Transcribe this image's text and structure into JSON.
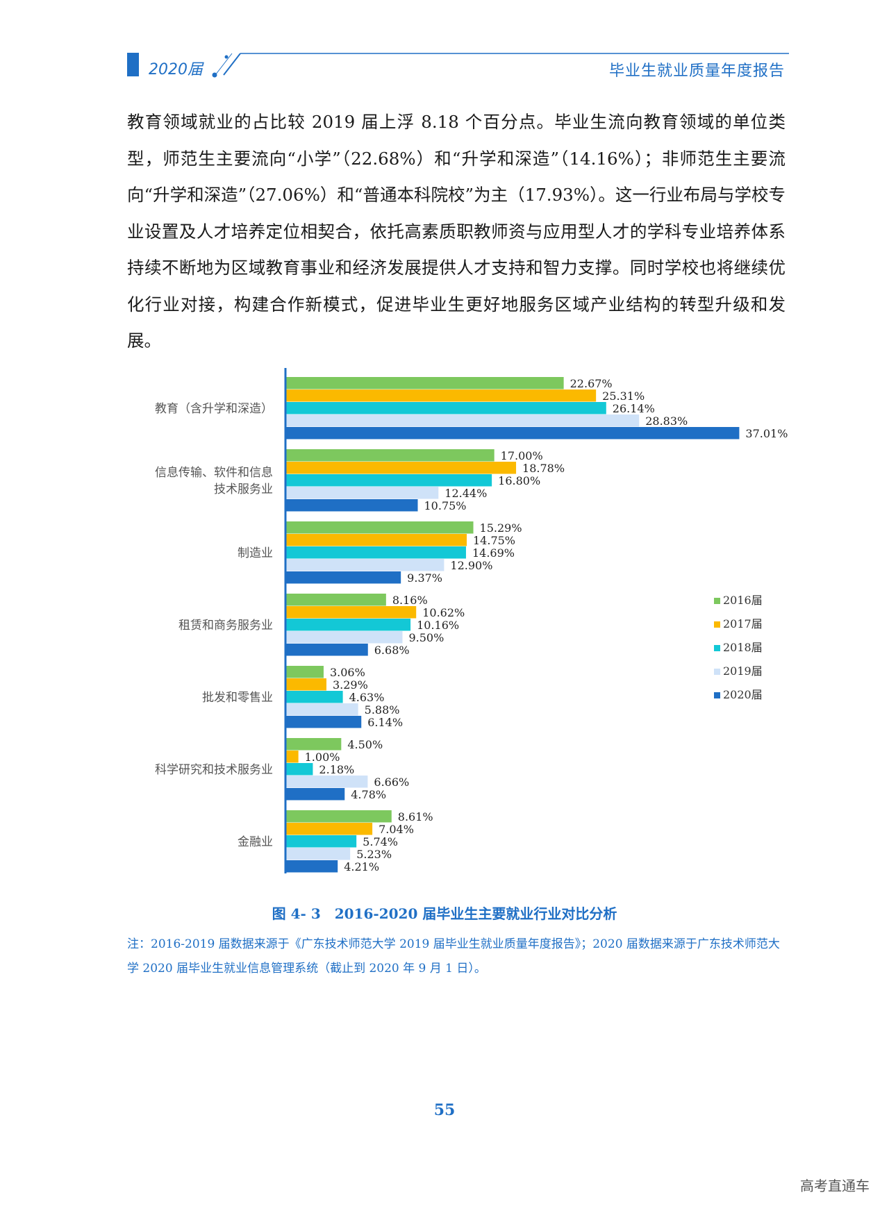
{
  "header": {
    "year": "2020届",
    "title": "毕业生就业质量年度报告"
  },
  "body": {
    "paragraph": "教育领域就业的占比较 2019 届上浮 8.18 个百分点。毕业生流向教育领域的单位类型，师范生主要流向“小学”（22.68%）和“升学和深造”（14.16%）；非师范生主要流向“升学和深造”（27.06%）和“普通本科院校”为主（17.93%）。这一行业布局与学校专业设置及人才培养定位相契合，依托高素质职教师资与应用型人才的学科专业培养体系持续不断地为区域教育事业和经济发展提供人才支持和智力支撑。同时学校也将继续优化行业对接，构建合作新模式，促进毕业生更好地服务区域产业结构的转型升级和发展。"
  },
  "chart_data": {
    "type": "bar",
    "orientation": "horizontal",
    "categories": [
      [
        "教育（含升学和深造）"
      ],
      [
        "信息传输、软件和信息",
        "技术服务业"
      ],
      [
        "制造业"
      ],
      [
        "租赁和商务服务业"
      ],
      [
        "批发和零售业"
      ],
      [
        "科学研究和技术服务业"
      ],
      [
        "金融业"
      ]
    ],
    "series": [
      {
        "name": "2016届",
        "color": "#7dc85e",
        "values": [
          22.67,
          17.0,
          15.29,
          8.16,
          3.06,
          4.5,
          8.61
        ]
      },
      {
        "name": "2017届",
        "color": "#fbb900",
        "values": [
          25.31,
          18.78,
          14.75,
          10.62,
          3.29,
          1.0,
          7.04
        ]
      },
      {
        "name": "2018届",
        "color": "#13c8d6",
        "values": [
          26.14,
          16.8,
          14.69,
          10.16,
          4.63,
          2.18,
          5.74
        ]
      },
      {
        "name": "2019届",
        "color": "#cfe2f8",
        "values": [
          28.83,
          12.44,
          12.9,
          9.5,
          5.88,
          6.66,
          5.23
        ]
      },
      {
        "name": "2020届",
        "color": "#1f6fc5",
        "values": [
          37.01,
          10.75,
          9.37,
          6.68,
          6.14,
          4.78,
          4.21
        ]
      }
    ],
    "value_suffix": "%",
    "xlim": [
      0,
      40
    ],
    "legend": "right",
    "axis_color": "#1f6fc5"
  },
  "figure": {
    "caption": "图 4- 3　2016-2020 届毕业生主要就业行业对比分析",
    "note": "注：2016-2019 届数据来源于《广东技术师范大学 2019 届毕业生就业质量年度报告》；2020 届数据来源于广东技术师范大学 2020 届毕业生就业信息管理系统（截止到 2020 年 9 月 1 日）。"
  },
  "footer": {
    "page_number": "55",
    "watermark": "高考直通车"
  }
}
